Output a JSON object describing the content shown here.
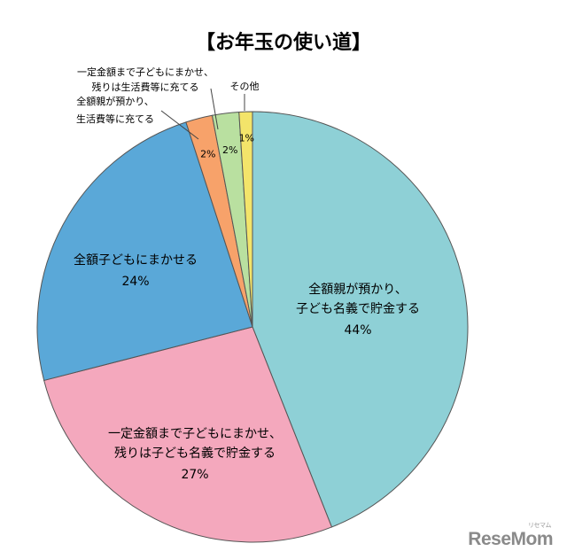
{
  "chart_data": {
    "type": "pie",
    "title": "【お年玉の使い道】",
    "slices": [
      {
        "label_lines": [
          "全額親が預かり、",
          "子ども名義で貯金する"
        ],
        "value": 44,
        "value_label": "44%",
        "color": "#8ed0d6"
      },
      {
        "label_lines": [
          "一定金額まで子どもにまかせ、",
          "残りは子ども名義で貯金する"
        ],
        "value": 27,
        "value_label": "27%",
        "color": "#f4a8bd"
      },
      {
        "label_lines": [
          "全額子どもにまかせる"
        ],
        "value": 24,
        "value_label": "24%",
        "color": "#5aa8d8"
      },
      {
        "label_lines": [
          "全額親が預かり、",
          "生活費等に充てる"
        ],
        "value": 2,
        "value_label": "2%",
        "color": "#f7a26a"
      },
      {
        "label_lines": [
          "一定金額まで子どもにまかせ、",
          "残りは生活費等に充てる"
        ],
        "value": 2,
        "value_label": "2%",
        "color": "#b9e0a0"
      },
      {
        "label_lines": [
          "その他"
        ],
        "value": 1,
        "value_label": "1%",
        "color": "#f3e46a"
      }
    ]
  },
  "watermark": {
    "text": "ReseMom",
    "kana": "リセマム"
  }
}
